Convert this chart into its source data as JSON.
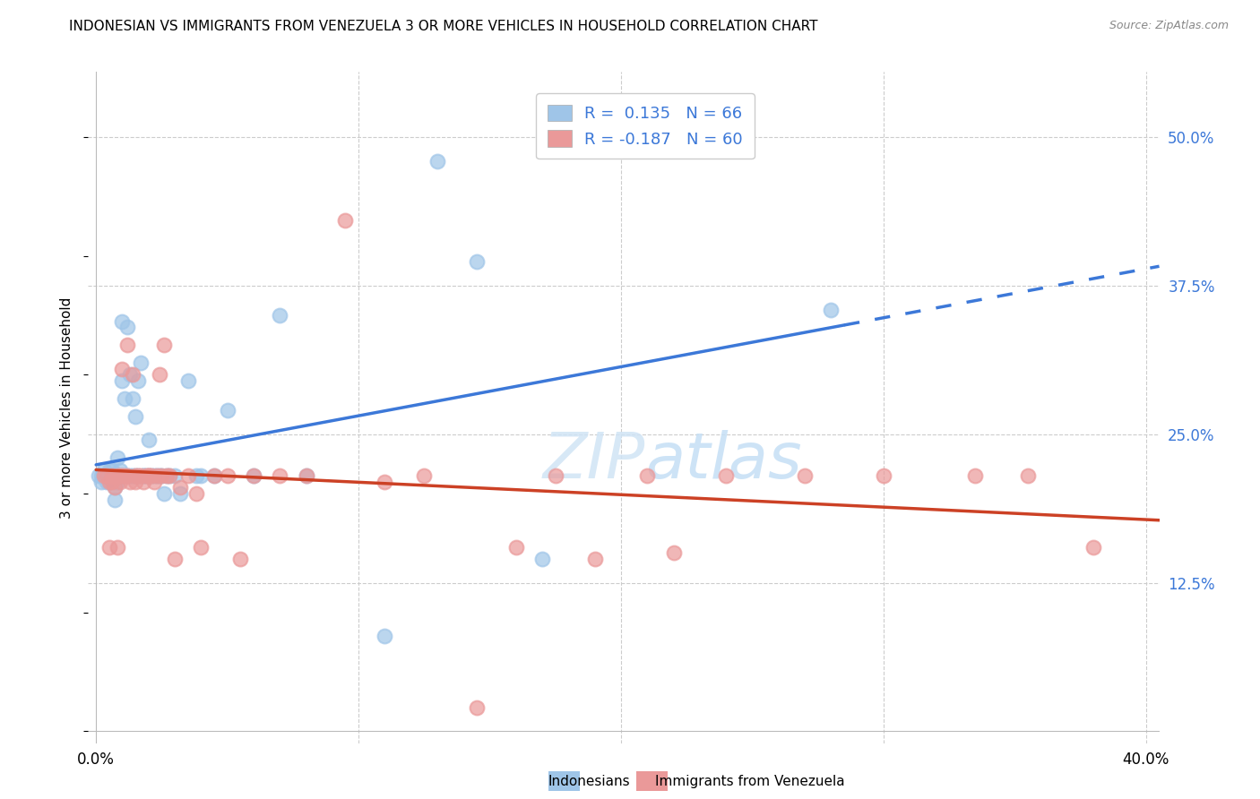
{
  "title": "INDONESIAN VS IMMIGRANTS FROM VENEZUELA 3 OR MORE VEHICLES IN HOUSEHOLD CORRELATION CHART",
  "source": "Source: ZipAtlas.com",
  "ylabel": "3 or more Vehicles in Household",
  "ytick_labels": [
    "50.0%",
    "37.5%",
    "25.0%",
    "12.5%"
  ],
  "ytick_values": [
    0.5,
    0.375,
    0.25,
    0.125
  ],
  "xlim": [
    -0.003,
    0.405
  ],
  "ylim": [
    -0.01,
    0.555
  ],
  "color_blue": "#9fc5e8",
  "color_pink": "#ea9999",
  "line_color_blue": "#3c78d8",
  "line_color_pink": "#cc4125",
  "watermark": "ZIPatlas",
  "indonesian_x": [
    0.001,
    0.002,
    0.002,
    0.003,
    0.003,
    0.004,
    0.004,
    0.004,
    0.005,
    0.005,
    0.005,
    0.006,
    0.006,
    0.006,
    0.007,
    0.007,
    0.007,
    0.008,
    0.008,
    0.008,
    0.009,
    0.009,
    0.01,
    0.01,
    0.01,
    0.011,
    0.011,
    0.012,
    0.012,
    0.013,
    0.013,
    0.014,
    0.014,
    0.015,
    0.015,
    0.016,
    0.016,
    0.017,
    0.018,
    0.018,
    0.019,
    0.02,
    0.02,
    0.021,
    0.022,
    0.023,
    0.024,
    0.025,
    0.026,
    0.027,
    0.028,
    0.03,
    0.032,
    0.035,
    0.038,
    0.04,
    0.045,
    0.05,
    0.06,
    0.07,
    0.08,
    0.11,
    0.13,
    0.145,
    0.17,
    0.28
  ],
  "indonesian_y": [
    0.215,
    0.21,
    0.215,
    0.22,
    0.215,
    0.215,
    0.21,
    0.215,
    0.22,
    0.215,
    0.21,
    0.215,
    0.215,
    0.22,
    0.195,
    0.205,
    0.215,
    0.23,
    0.21,
    0.215,
    0.215,
    0.22,
    0.215,
    0.345,
    0.295,
    0.28,
    0.215,
    0.215,
    0.34,
    0.3,
    0.215,
    0.28,
    0.215,
    0.265,
    0.215,
    0.295,
    0.215,
    0.31,
    0.215,
    0.215,
    0.215,
    0.215,
    0.245,
    0.215,
    0.215,
    0.215,
    0.215,
    0.215,
    0.2,
    0.215,
    0.215,
    0.215,
    0.2,
    0.295,
    0.215,
    0.215,
    0.215,
    0.27,
    0.215,
    0.35,
    0.215,
    0.08,
    0.48,
    0.395,
    0.145,
    0.355
  ],
  "venezuela_x": [
    0.003,
    0.004,
    0.005,
    0.005,
    0.006,
    0.006,
    0.007,
    0.008,
    0.008,
    0.009,
    0.009,
    0.01,
    0.01,
    0.011,
    0.012,
    0.012,
    0.013,
    0.014,
    0.015,
    0.015,
    0.016,
    0.017,
    0.018,
    0.019,
    0.02,
    0.02,
    0.021,
    0.022,
    0.023,
    0.024,
    0.025,
    0.026,
    0.027,
    0.028,
    0.03,
    0.032,
    0.035,
    0.038,
    0.04,
    0.045,
    0.05,
    0.055,
    0.06,
    0.07,
    0.08,
    0.095,
    0.11,
    0.125,
    0.145,
    0.16,
    0.175,
    0.19,
    0.21,
    0.22,
    0.24,
    0.27,
    0.3,
    0.335,
    0.355,
    0.38
  ],
  "venezuela_y": [
    0.215,
    0.215,
    0.155,
    0.21,
    0.215,
    0.21,
    0.205,
    0.155,
    0.215,
    0.21,
    0.215,
    0.305,
    0.215,
    0.215,
    0.215,
    0.325,
    0.21,
    0.3,
    0.215,
    0.21,
    0.215,
    0.215,
    0.21,
    0.215,
    0.215,
    0.215,
    0.215,
    0.21,
    0.215,
    0.3,
    0.215,
    0.325,
    0.215,
    0.215,
    0.145,
    0.205,
    0.215,
    0.2,
    0.155,
    0.215,
    0.215,
    0.145,
    0.215,
    0.215,
    0.215,
    0.43,
    0.21,
    0.215,
    0.02,
    0.155,
    0.215,
    0.145,
    0.215,
    0.15,
    0.215,
    0.215,
    0.215,
    0.215,
    0.215,
    0.155
  ]
}
